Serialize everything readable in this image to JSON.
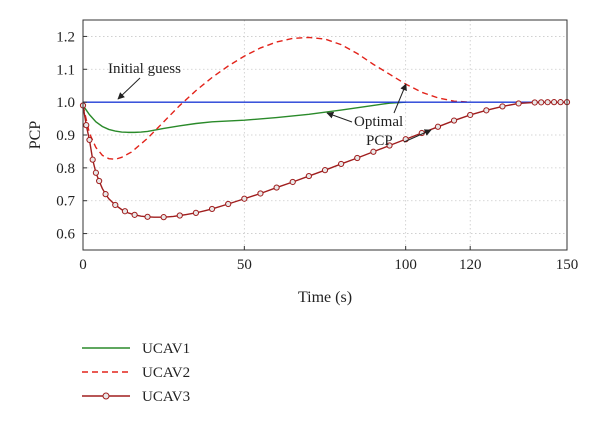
{
  "chart_data": {
    "type": "line",
    "xlabel": "Time (s)",
    "ylabel": "PCP",
    "xlim": [
      0,
      150
    ],
    "ylim": [
      0.55,
      1.25
    ],
    "xticks": [
      0,
      50,
      100,
      120,
      150
    ],
    "yticks": [
      0.6,
      0.7,
      0.8,
      0.9,
      1.0,
      1.1,
      1.2
    ],
    "ytick_labels": [
      "0.6",
      "0.7",
      "0.8",
      "0.9",
      "1.0",
      "1.1",
      "1.2"
    ],
    "grid": true,
    "legend_position": "below",
    "series": [
      {
        "name": "UCAV1",
        "color": "#2a8a2a",
        "style": "solid",
        "x": [
          0,
          2,
          4,
          6,
          8,
          10,
          12,
          14,
          16,
          18,
          20,
          25,
          30,
          35,
          40,
          50,
          60,
          70,
          80,
          90,
          95,
          100
        ],
        "y": [
          0.99,
          0.962,
          0.94,
          0.926,
          0.917,
          0.912,
          0.909,
          0.908,
          0.908,
          0.909,
          0.911,
          0.92,
          0.928,
          0.935,
          0.94,
          0.945,
          0.953,
          0.963,
          0.976,
          0.99,
          0.997,
          1.0
        ]
      },
      {
        "name": "UCAV2",
        "color": "#e2231a",
        "style": "dashed",
        "x": [
          0,
          2,
          4,
          6,
          8,
          10,
          12,
          15,
          20,
          25,
          30,
          35,
          40,
          45,
          50,
          55,
          60,
          65,
          70,
          75,
          80,
          85,
          90,
          95,
          100,
          105,
          110,
          115,
          120
        ],
        "y": [
          0.99,
          0.905,
          0.862,
          0.838,
          0.828,
          0.826,
          0.832,
          0.848,
          0.89,
          0.94,
          0.99,
          1.035,
          1.075,
          1.11,
          1.14,
          1.165,
          1.183,
          1.194,
          1.197,
          1.192,
          1.175,
          1.148,
          1.115,
          1.085,
          1.055,
          1.03,
          1.013,
          1.003,
          1.0
        ]
      },
      {
        "name": "UCAV3",
        "color": "#a01e1e",
        "style": "solid-circle",
        "x": [
          0,
          1,
          2,
          3,
          4,
          5,
          6,
          7,
          8,
          10,
          12,
          14,
          16,
          18,
          20,
          22,
          25,
          28,
          30,
          32,
          35,
          38,
          40,
          45,
          50,
          55,
          60,
          65,
          70,
          75,
          80,
          85,
          90,
          95,
          100,
          105,
          110,
          115,
          120,
          125,
          130,
          135,
          140,
          145,
          150
        ],
        "y": [
          0.99,
          0.93,
          0.885,
          0.825,
          0.785,
          0.76,
          0.737,
          0.72,
          0.706,
          0.687,
          0.673,
          0.663,
          0.657,
          0.653,
          0.651,
          0.65,
          0.65,
          0.652,
          0.655,
          0.658,
          0.663,
          0.67,
          0.675,
          0.69,
          0.706,
          0.722,
          0.74,
          0.757,
          0.775,
          0.793,
          0.812,
          0.83,
          0.849,
          0.868,
          0.887,
          0.906,
          0.925,
          0.944,
          0.961,
          0.975,
          0.987,
          0.996,
          0.999,
          1.0,
          1.0
        ],
        "markers_x": [
          0,
          1,
          2,
          3,
          4,
          5,
          7,
          10,
          13,
          16,
          20,
          25,
          30,
          35,
          40,
          45,
          50,
          55,
          60,
          65,
          70,
          75,
          80,
          85,
          90,
          95,
          100,
          105,
          110,
          115,
          120,
          125,
          130,
          135,
          140,
          142,
          144,
          146,
          148,
          150
        ]
      },
      {
        "name": "Initial guess",
        "color": "#1f3bd6",
        "style": "solid",
        "x": [
          0,
          150
        ],
        "y": [
          1.0,
          1.0
        ]
      }
    ],
    "annotations": [
      {
        "text": "Initial guess",
        "arrow_to": [
          11,
          1.0
        ]
      },
      {
        "text": "Optimal\nPCP",
        "arrow_to": [
          [
            76,
            0.96
          ],
          [
            101,
            1.06
          ],
          [
            109,
            0.9
          ]
        ]
      }
    ]
  },
  "labels": {
    "annotation_initial_guess": "Initial guess",
    "annotation_optimal_line1": "Optimal",
    "annotation_optimal_line2": "PCP"
  }
}
